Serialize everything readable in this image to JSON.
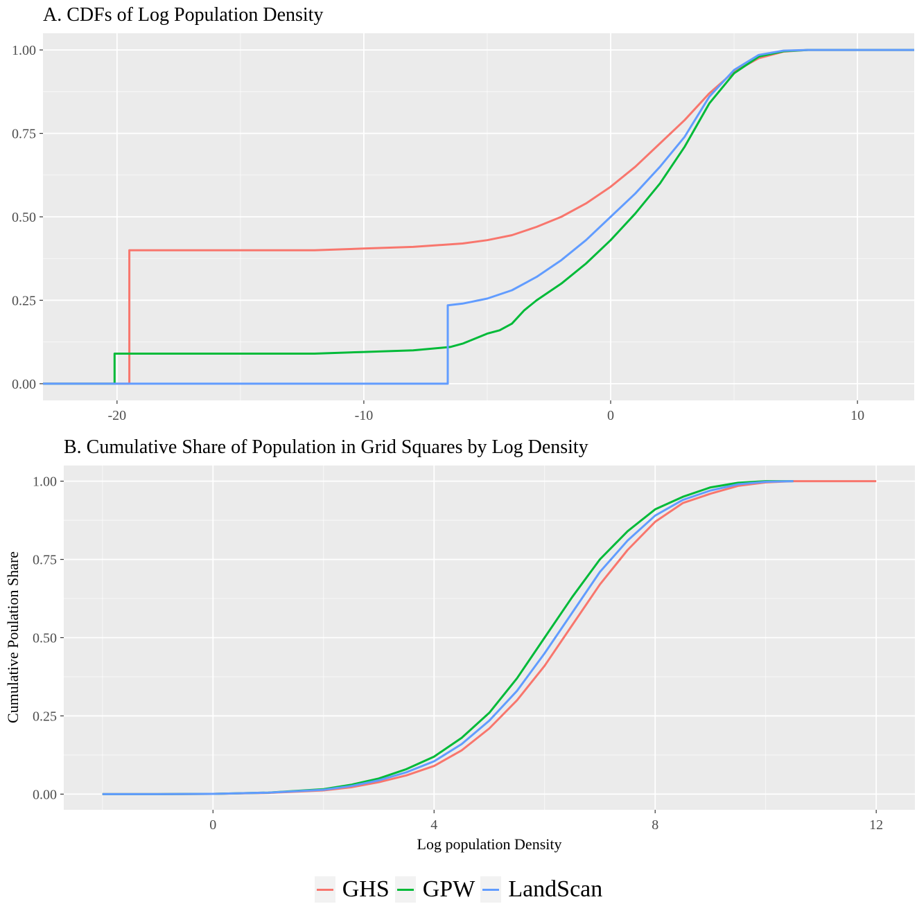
{
  "colors": {
    "GHS": "#F8766D",
    "GPW": "#00BA38",
    "LandScan": "#619CFF",
    "panel": "#EBEBEB",
    "grid": "#FFFFFF"
  },
  "legend": {
    "items": [
      "GHS",
      "GPW",
      "LandScan"
    ]
  },
  "chart_data": [
    {
      "type": "line",
      "title": "A. CDFs of Log Population Density",
      "xlabel": "",
      "ylabel": "",
      "xlim": [
        -23,
        12.3
      ],
      "ylim": [
        -0.05,
        1.05
      ],
      "xticks": [
        -20,
        -10,
        0,
        10
      ],
      "xtick_labels": [
        "-20",
        "-10",
        "0",
        "10"
      ],
      "yticks": [
        0,
        0.25,
        0.5,
        0.75,
        1.0
      ],
      "ytick_labels": [
        "0.00",
        "0.25",
        "0.50",
        "0.75",
        "1.00"
      ],
      "grid": true,
      "series": [
        {
          "name": "GHS",
          "x": [
            -23,
            -19.5,
            -19.5,
            -16,
            -12,
            -10,
            -8,
            -6,
            -5,
            -4,
            -3,
            -2,
            -1,
            0,
            1,
            2,
            3,
            4,
            5,
            6,
            7,
            8,
            9,
            12.3
          ],
          "y": [
            0,
            0,
            0.4,
            0.4,
            0.4,
            0.405,
            0.41,
            0.42,
            0.43,
            0.445,
            0.47,
            0.5,
            0.54,
            0.59,
            0.65,
            0.72,
            0.79,
            0.87,
            0.935,
            0.975,
            0.995,
            1.0,
            1.0,
            1.0
          ]
        },
        {
          "name": "GPW",
          "x": [
            -23,
            -20.1,
            -20.1,
            -16,
            -12,
            -10,
            -8,
            -6.5,
            -6,
            -5,
            -4.5,
            -4,
            -3.5,
            -3,
            -2,
            -1,
            0,
            1,
            2,
            3,
            4,
            5,
            6,
            7,
            8,
            9,
            12.3
          ],
          "y": [
            0,
            0,
            0.09,
            0.09,
            0.09,
            0.095,
            0.1,
            0.11,
            0.12,
            0.15,
            0.16,
            0.18,
            0.22,
            0.25,
            0.3,
            0.36,
            0.43,
            0.51,
            0.6,
            0.71,
            0.84,
            0.93,
            0.98,
            0.996,
            1.0,
            1.0,
            1.0
          ]
        },
        {
          "name": "LandScan",
          "x": [
            -23,
            -6.6,
            -6.6,
            -6,
            -5,
            -4,
            -3,
            -2,
            -1,
            0,
            1,
            2,
            3,
            4,
            5,
            6,
            7,
            8,
            9,
            12.3
          ],
          "y": [
            0,
            0,
            0.235,
            0.24,
            0.255,
            0.28,
            0.32,
            0.37,
            0.43,
            0.5,
            0.57,
            0.65,
            0.74,
            0.86,
            0.94,
            0.985,
            0.998,
            1.0,
            1.0,
            1.0
          ]
        }
      ]
    },
    {
      "type": "line",
      "title": "B. Cumulative Share of Population in Grid Squares by Log Density",
      "xlabel": "Log population Density",
      "ylabel": "Cumulative Poulation Share",
      "xlim": [
        -2.7,
        12.7
      ],
      "ylim": [
        -0.05,
        1.05
      ],
      "xticks": [
        0,
        4,
        8,
        12
      ],
      "xtick_labels": [
        "0",
        "4",
        "8",
        "12"
      ],
      "yticks": [
        0,
        0.25,
        0.5,
        0.75,
        1.0
      ],
      "ytick_labels": [
        "0.00",
        "0.25",
        "0.50",
        "0.75",
        "1.00"
      ],
      "grid": true,
      "series": [
        {
          "name": "GHS",
          "x": [
            -2,
            -1,
            0,
            1,
            2,
            2.5,
            3,
            3.5,
            4,
            4.5,
            5,
            5.5,
            6,
            6.5,
            7,
            7.5,
            8,
            8.5,
            9,
            9.5,
            10,
            10.5,
            11,
            12
          ],
          "y": [
            0,
            0,
            0.001,
            0.004,
            0.012,
            0.022,
            0.038,
            0.06,
            0.09,
            0.14,
            0.21,
            0.3,
            0.41,
            0.54,
            0.67,
            0.78,
            0.87,
            0.93,
            0.96,
            0.985,
            0.996,
            1.0,
            1.0,
            1.0
          ]
        },
        {
          "name": "GPW",
          "x": [
            -2,
            -1,
            0,
            1,
            2,
            2.5,
            3,
            3.5,
            4,
            4.5,
            5,
            5.5,
            6,
            6.5,
            7,
            7.5,
            8,
            8.5,
            9,
            9.5,
            10,
            10.5
          ],
          "y": [
            0,
            0,
            0.001,
            0.005,
            0.016,
            0.03,
            0.05,
            0.08,
            0.12,
            0.18,
            0.26,
            0.37,
            0.5,
            0.63,
            0.75,
            0.84,
            0.91,
            0.95,
            0.98,
            0.995,
            1.0,
            1.0
          ]
        },
        {
          "name": "LandScan",
          "x": [
            -2,
            -1,
            0,
            1,
            2,
            2.5,
            3,
            3.5,
            4,
            4.5,
            5,
            5.5,
            6,
            6.5,
            7,
            7.5,
            8,
            8.5,
            9,
            9.5,
            10,
            10.5
          ],
          "y": [
            0,
            0,
            0.001,
            0.005,
            0.014,
            0.026,
            0.044,
            0.07,
            0.105,
            0.16,
            0.235,
            0.33,
            0.45,
            0.58,
            0.71,
            0.81,
            0.89,
            0.94,
            0.97,
            0.99,
            0.998,
            1.0
          ]
        }
      ]
    }
  ]
}
